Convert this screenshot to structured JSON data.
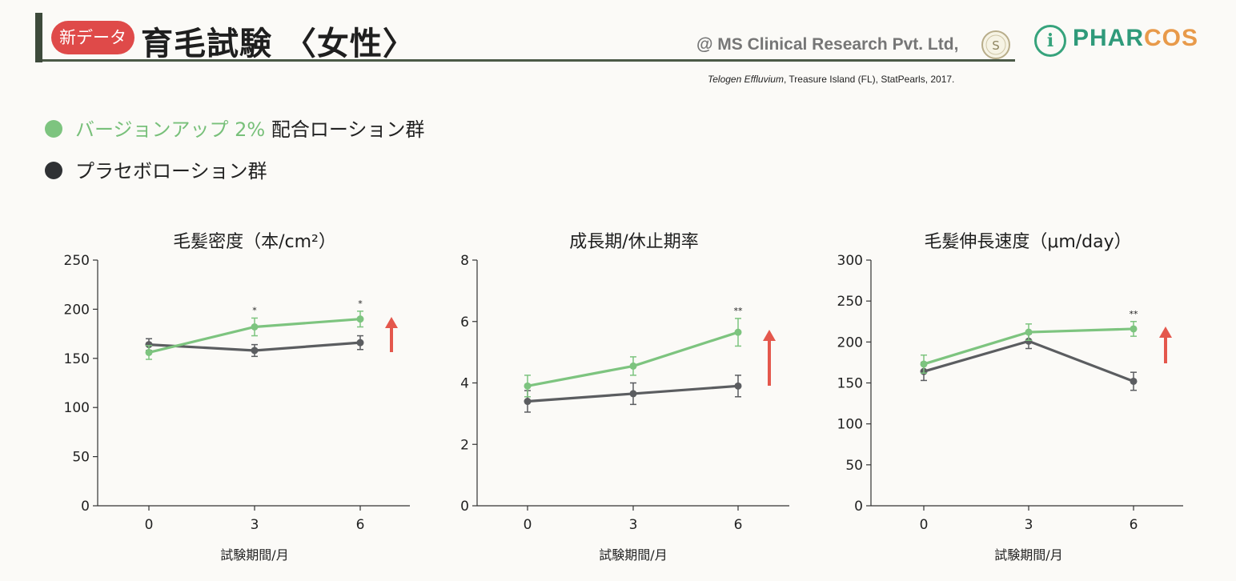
{
  "header": {
    "badge": "新データ",
    "title": "育毛試験 〈女性〉",
    "credit": "@ MS Clinical Research Pvt. Ltd,",
    "seal_text": "S",
    "logo_prefix": "i",
    "logo_part1": "PHAR",
    "logo_part2": "COS"
  },
  "citation": {
    "italic": "Telogen Effluvium",
    "rest": ", Treasure Island (FL), StatPearls, 2017."
  },
  "legend": {
    "items": [
      {
        "highlight": "バージョンアップ 2%",
        "text": " 配合ローション群",
        "color": "#7dc47f"
      },
      {
        "highlight": "",
        "text": "プラセボローション群",
        "color": "#2f3134"
      }
    ]
  },
  "colors": {
    "treatment": "#7dc47f",
    "placebo": "#5b5d60",
    "arrow": "#e4574c",
    "axis": "#333333"
  },
  "chart_data": [
    {
      "type": "line",
      "title": "毛髪密度（本/cm²）",
      "xlabel": "試験期間/月",
      "x": [
        0,
        3,
        6
      ],
      "ylim": [
        0,
        250
      ],
      "yticks": [
        "0",
        "50",
        "100",
        "150",
        "200",
        "250"
      ],
      "xticks": [
        "0",
        "3",
        "6"
      ],
      "series": [
        {
          "name": "バージョンアップ 2% 配合ローション群",
          "values": [
            156,
            182,
            190
          ],
          "errors": [
            7,
            9,
            8
          ]
        },
        {
          "name": "プラセボローション群",
          "values": [
            164,
            158,
            166
          ],
          "errors": [
            6,
            6,
            7
          ]
        }
      ],
      "annotations": [
        "",
        "*",
        "*"
      ],
      "trend_arrow": "up"
    },
    {
      "type": "line",
      "title": "成長期/休止期率",
      "xlabel": "試験期間/月",
      "x": [
        0,
        3,
        6
      ],
      "ylim": [
        0,
        8
      ],
      "yticks": [
        "0",
        "2",
        "4",
        "6",
        "8"
      ],
      "xticks": [
        "0",
        "3",
        "6"
      ],
      "series": [
        {
          "name": "バージョンアップ 2% 配合ローション群",
          "values": [
            3.9,
            4.55,
            5.65
          ],
          "errors": [
            0.35,
            0.3,
            0.45
          ]
        },
        {
          "name": "プラセボローション群",
          "values": [
            3.4,
            3.65,
            3.9
          ],
          "errors": [
            0.35,
            0.35,
            0.35
          ]
        }
      ],
      "annotations": [
        "",
        "",
        "**"
      ],
      "trend_arrow": "up"
    },
    {
      "type": "line",
      "title": "毛髪伸長速度（μm/day）",
      "xlabel": "試験期間/月",
      "x": [
        0,
        3,
        6
      ],
      "ylim": [
        0,
        300
      ],
      "yticks": [
        "0",
        "50",
        "100",
        "150",
        "200",
        "250",
        "300"
      ],
      "xticks": [
        "0",
        "3",
        "6"
      ],
      "series": [
        {
          "name": "バージョンアップ 2% 配合ローション群",
          "values": [
            173,
            212,
            216
          ],
          "errors": [
            11,
            10,
            9
          ]
        },
        {
          "name": "プラセボローション群",
          "values": [
            164,
            201,
            152
          ],
          "errors": [
            11,
            9,
            11
          ]
        }
      ],
      "annotations": [
        "",
        "",
        "**"
      ],
      "trend_arrow": "up"
    }
  ]
}
